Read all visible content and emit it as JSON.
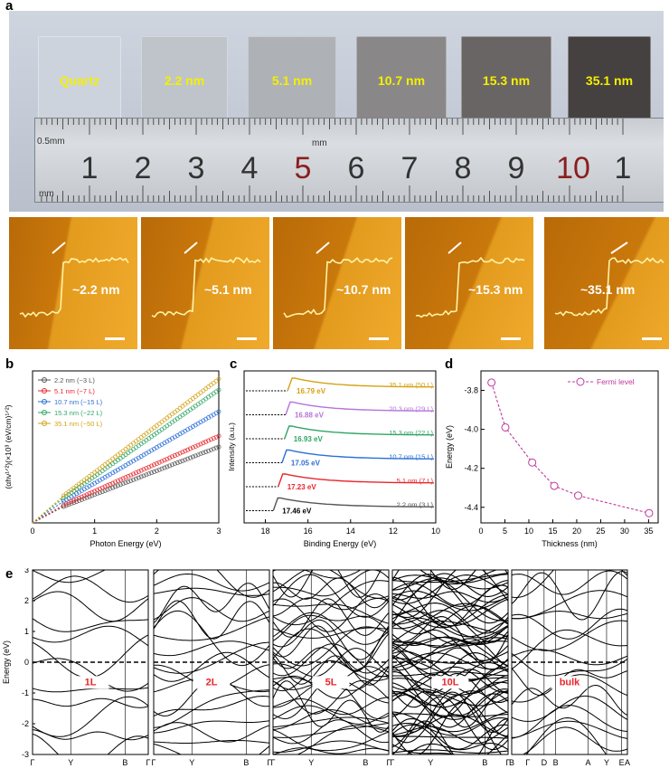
{
  "panel_labels": {
    "a": "a",
    "b": "b",
    "c": "c",
    "d": "d",
    "e": "e"
  },
  "photo": {
    "samples": [
      {
        "label": "Quartz",
        "color": "#cdd3dc"
      },
      {
        "label": "2.2 nm",
        "color": "#bfc4cb"
      },
      {
        "label": "5.1 nm",
        "color": "#aeb1b6"
      },
      {
        "label": "10.7 nm",
        "color": "#8a8789"
      },
      {
        "label": "15.3 nm",
        "color": "#6a6565"
      },
      {
        "label": "35.1 nm",
        "color": "#454140"
      }
    ],
    "ruler": {
      "unit_top": "0.5mm",
      "unit_mid": "mm",
      "unit_bottom": "mm",
      "numbers": [
        "1",
        "2",
        "3",
        "4",
        "5",
        "6",
        "7",
        "8",
        "9",
        "10",
        "1"
      ],
      "red_numbers": [
        "5",
        "10"
      ]
    }
  },
  "afm": {
    "labels": [
      "~2.2 nm",
      "~5.1 nm",
      "~10.7 nm",
      "~15.3 nm",
      "~35.1 nm"
    ]
  },
  "chart_data": [
    {
      "panel": "b",
      "type": "scatter",
      "xlabel": "Photon Energy (eV)",
      "ylabel": "(αhν¹ᐟ²)(×10³ (eV/cm)¹ᐟ²)",
      "xlim": [
        0,
        3
      ],
      "xticks": [
        "0",
        "1",
        "2",
        "3"
      ],
      "legend_position": "top-left",
      "series": [
        {
          "name": "2.2 nm (~3 L)",
          "color": "#555555",
          "x_start": 0.5,
          "x_end": 3.0,
          "y_start": 0.3,
          "y_end": 1.4
        },
        {
          "name": "5.1 nm (~7 L)",
          "color": "#e8262b",
          "x_start": 0.5,
          "x_end": 3.0,
          "y_start": 0.33,
          "y_end": 1.6
        },
        {
          "name": "10.7 nm (~15 L)",
          "color": "#2b6fd6",
          "x_start": 0.5,
          "x_end": 3.0,
          "y_start": 0.4,
          "y_end": 2.05
        },
        {
          "name": "15.3 nm (~22 L)",
          "color": "#2fa566",
          "x_start": 0.5,
          "x_end": 3.0,
          "y_start": 0.46,
          "y_end": 2.45
        },
        {
          "name": "35.1 nm (~50 L)",
          "color": "#d4a215",
          "x_start": 0.5,
          "x_end": 3.0,
          "y_start": 0.5,
          "y_end": 2.65
        }
      ],
      "ylim": [
        0,
        2.8
      ]
    },
    {
      "panel": "c",
      "type": "line",
      "xlabel": "Binding Energy (eV)",
      "ylabel": "Intensity (a.u.)",
      "xlim": [
        19,
        10
      ],
      "xticks": [
        "18",
        "16",
        "14",
        "12",
        "10"
      ],
      "series": [
        {
          "name": "35.1 nm (50 L)",
          "cutoff": "16.79 eV",
          "cutoff_value": 16.79,
          "color": "#d4a215"
        },
        {
          "name": "20.3 nm (29 L)",
          "cutoff": "16.88 eV",
          "cutoff_value": 16.88,
          "color": "#b574d9"
        },
        {
          "name": "15.3 nm (22 L)",
          "cutoff": "16.93 eV",
          "cutoff_value": 16.93,
          "color": "#2fa566"
        },
        {
          "name": "10.7 nm (15 L)",
          "cutoff": "17.05 eV",
          "cutoff_value": 17.05,
          "color": "#2b6fd6"
        },
        {
          "name": "5.1 nm (7 L)",
          "cutoff": "17.23 eV",
          "cutoff_value": 17.23,
          "color": "#e8262b"
        },
        {
          "name": "2.2 nm (3 L)",
          "cutoff": "17.46 eV",
          "cutoff_value": 17.46,
          "color": "#555555"
        }
      ]
    },
    {
      "panel": "d",
      "type": "line",
      "xlabel": "Thickness (nm)",
      "ylabel": "Energy (eV)",
      "xlim": [
        0,
        37
      ],
      "ylim": [
        -4.48,
        -3.7
      ],
      "xticks": [
        "0",
        "5",
        "10",
        "15",
        "20",
        "25",
        "30",
        "35"
      ],
      "yticks": [
        "-3.8",
        "-4.0",
        "-4.2",
        "-4.4"
      ],
      "legend": "Fermi level",
      "legend_position": "top-right",
      "color": "#c0399c",
      "x": [
        2.2,
        5.1,
        10.7,
        15.3,
        20.3,
        35.1
      ],
      "y": [
        -3.76,
        -3.99,
        -4.17,
        -4.29,
        -4.34,
        -4.43
      ]
    },
    {
      "panel": "e",
      "type": "line",
      "ylabel": "Energy (eV)",
      "ylim": [
        -3,
        3
      ],
      "yticks": [
        "3",
        "2",
        "1",
        "0",
        "-1",
        "-2",
        "-3"
      ],
      "subplots": [
        {
          "label": "1L",
          "kpoints": [
            "Γ",
            "Y",
            "B",
            "Γ"
          ],
          "bands": 12
        },
        {
          "label": "2L",
          "kpoints": [
            "Γ",
            "Y",
            "B",
            "Γ"
          ],
          "bands": 20
        },
        {
          "label": "5L",
          "kpoints": [
            "Γ",
            "Y",
            "B",
            "Γ"
          ],
          "bands": 40
        },
        {
          "label": "10L",
          "kpoints": [
            "Γ",
            "Y",
            "B",
            "Γ"
          ],
          "bands": 70
        },
        {
          "label": "bulk",
          "kpoints": [
            "B",
            "Γ",
            "D",
            "B",
            "A",
            "Y",
            "E",
            "A"
          ],
          "bands": 18
        }
      ]
    }
  ]
}
